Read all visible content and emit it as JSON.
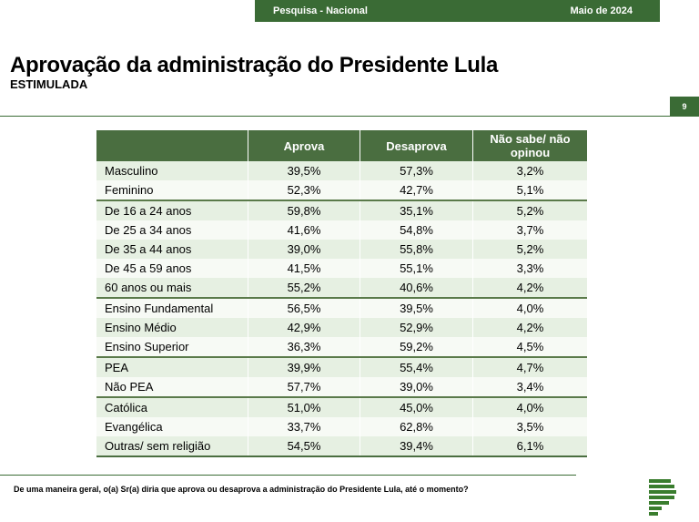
{
  "header": {
    "survey": "Pesquisa - Nacional",
    "date": "Maio de 2024"
  },
  "title": "Aprovação da administração do Presidente Lula",
  "subtitle": "ESTIMULADA",
  "page_number": "9",
  "table": {
    "columns": [
      "",
      "Aprova",
      "Desaprova",
      "Não sabe/ não opinou"
    ],
    "rows": [
      {
        "label": "Masculino",
        "aprova": "39,5%",
        "desaprova": "57,3%",
        "nao_sabe": "3,2%"
      },
      {
        "label": "Feminino",
        "aprova": "52,3%",
        "desaprova": "42,7%",
        "nao_sabe": "5,1%"
      },
      {
        "label": "De 16 a 24 anos",
        "aprova": "59,8%",
        "desaprova": "35,1%",
        "nao_sabe": "5,2%"
      },
      {
        "label": "De 25 a 34 anos",
        "aprova": "41,6%",
        "desaprova": "54,8%",
        "nao_sabe": "3,7%"
      },
      {
        "label": "De 35 a 44 anos",
        "aprova": "39,0%",
        "desaprova": "55,8%",
        "nao_sabe": "5,2%"
      },
      {
        "label": "De 45 a 59 anos",
        "aprova": "41,5%",
        "desaprova": "55,1%",
        "nao_sabe": "3,3%"
      },
      {
        "label": "60 anos ou mais",
        "aprova": "55,2%",
        "desaprova": "40,6%",
        "nao_sabe": "4,2%"
      },
      {
        "label": "Ensino Fundamental",
        "aprova": "56,5%",
        "desaprova": "39,5%",
        "nao_sabe": "4,0%"
      },
      {
        "label": "Ensino Médio",
        "aprova": "42,9%",
        "desaprova": "52,9%",
        "nao_sabe": "4,2%"
      },
      {
        "label": "Ensino Superior",
        "aprova": "36,3%",
        "desaprova": "59,2%",
        "nao_sabe": "4,5%"
      },
      {
        "label": "PEA",
        "aprova": "39,9%",
        "desaprova": "55,4%",
        "nao_sabe": "4,7%"
      },
      {
        "label": "Não PEA",
        "aprova": "57,7%",
        "desaprova": "39,0%",
        "nao_sabe": "3,4%"
      },
      {
        "label": "Católica",
        "aprova": "51,0%",
        "desaprova": "45,0%",
        "nao_sabe": "4,0%"
      },
      {
        "label": "Evangélica",
        "aprova": "33,7%",
        "desaprova": "62,8%",
        "nao_sabe": "3,5%"
      },
      {
        "label": "Outras/ sem religião",
        "aprova": "54,5%",
        "desaprova": "39,4%",
        "nao_sabe": "6,1%"
      }
    ]
  },
  "footnote": "De uma maneira geral, o(a) Sr(a) diria que aprova ou desaprova a administração do Presidente Lula, até o momento?",
  "colors": {
    "brand_green": "#3a6b35",
    "header_green": "#4a6e40",
    "row_light": "#e6f0e2"
  }
}
